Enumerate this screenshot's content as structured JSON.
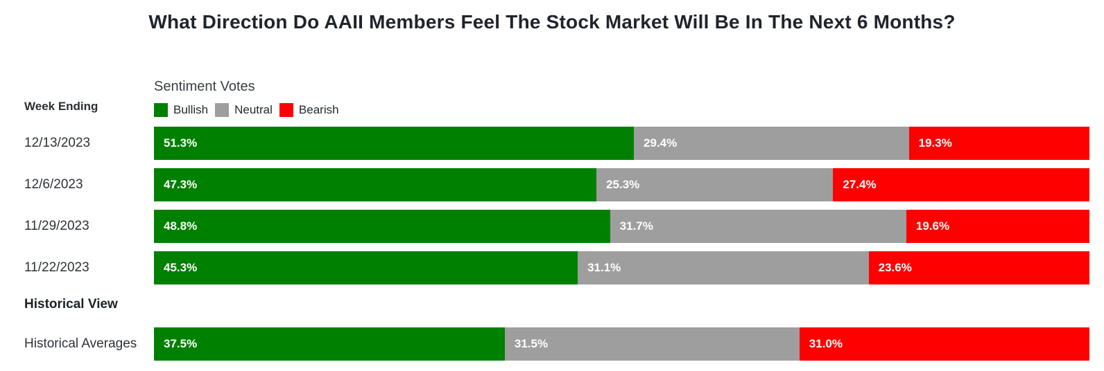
{
  "title": "What Direction Do AAII Members Feel The Stock Market Will Be In The Next 6 Months?",
  "left_header": "Week Ending",
  "section_header": "Historical View",
  "colors": {
    "bullish": "#008000",
    "neutral": "#9e9e9e",
    "bearish": "#fe0000"
  },
  "legend": {
    "title": "Sentiment Votes",
    "items": [
      {
        "label": "Bullish",
        "color": "#008000"
      },
      {
        "label": "Neutral",
        "color": "#9e9e9e"
      },
      {
        "label": "Bearish",
        "color": "#fe0000"
      }
    ]
  },
  "chart_data": {
    "type": "bar",
    "orientation": "horizontal",
    "stacked": true,
    "value_unit": "%",
    "xlim": [
      0,
      100
    ],
    "grid": false,
    "legend_position": "top",
    "title": "What Direction Do AAII Members Feel The Stock Market Will Be In The Next 6 Months?",
    "legend_title": "Sentiment Votes",
    "series_names": [
      "Bullish",
      "Neutral",
      "Bearish"
    ],
    "categories": [
      "12/13/2023",
      "12/6/2023",
      "11/29/2023",
      "11/22/2023",
      "Historical Averages"
    ],
    "rows": [
      {
        "label": "12/13/2023",
        "segments": [
          {
            "series": "Bullish",
            "value": 51.3,
            "display": "51.3%"
          },
          {
            "series": "Neutral",
            "value": 29.4,
            "display": "29.4%"
          },
          {
            "series": "Bearish",
            "value": 19.3,
            "display": "19.3%"
          }
        ]
      },
      {
        "label": "12/6/2023",
        "segments": [
          {
            "series": "Bullish",
            "value": 47.3,
            "display": "47.3%"
          },
          {
            "series": "Neutral",
            "value": 25.3,
            "display": "25.3%"
          },
          {
            "series": "Bearish",
            "value": 27.4,
            "display": "27.4%"
          }
        ]
      },
      {
        "label": "11/29/2023",
        "segments": [
          {
            "series": "Bullish",
            "value": 48.8,
            "display": "48.8%"
          },
          {
            "series": "Neutral",
            "value": 31.7,
            "display": "31.7%"
          },
          {
            "series": "Bearish",
            "value": 19.6,
            "display": "19.6%"
          }
        ]
      },
      {
        "label": "11/22/2023",
        "segments": [
          {
            "series": "Bullish",
            "value": 45.3,
            "display": "45.3%"
          },
          {
            "series": "Neutral",
            "value": 31.1,
            "display": "31.1%"
          },
          {
            "series": "Bearish",
            "value": 23.6,
            "display": "23.6%"
          }
        ]
      },
      {
        "label": "Historical Averages",
        "segments": [
          {
            "series": "Bullish",
            "value": 37.5,
            "display": "37.5%"
          },
          {
            "series": "Neutral",
            "value": 31.5,
            "display": "31.5%"
          },
          {
            "series": "Bearish",
            "value": 31.0,
            "display": "31.0%"
          }
        ]
      }
    ]
  }
}
